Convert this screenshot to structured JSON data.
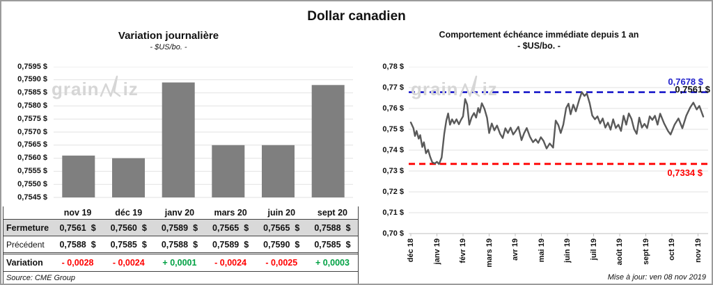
{
  "page_title": "Dollar canadien",
  "watermark": {
    "name": "GrainWiz",
    "prefix": "grain",
    "suffix": "iz"
  },
  "colors": {
    "bar_gray": "#7f7f7f",
    "line_gray": "#595959",
    "grid_gray": "#e2e2e2",
    "axis_gray": "#bfbfbf",
    "resistance_blue": "#2222cc",
    "support_red": "#ff0000",
    "positive_green": "#00a143",
    "negative_red": "#ff0000",
    "table_shade": "#d9d9d9",
    "frame_gray": "#9b9b9b"
  },
  "table": {
    "columns": [
      "nov 19",
      "déc 19",
      "janv 20",
      "mars 20",
      "juin 20",
      "sept 20"
    ],
    "rows": [
      {
        "id": "fermeture",
        "label": "Fermeture",
        "unit": "$",
        "values": [
          "0,7561",
          "0,7560",
          "0,7589",
          "0,7565",
          "0,7565",
          "0,7588"
        ]
      },
      {
        "id": "precedent",
        "label": "Précédent",
        "unit": "$",
        "values": [
          "0,7588",
          "0,7585",
          "0,7588",
          "0,7589",
          "0,7590",
          "0,7585"
        ]
      },
      {
        "id": "variation",
        "label": "Variation",
        "unit": "",
        "signed": true,
        "values": [
          "- 0,0028",
          "- 0,0024",
          "+ 0,0001",
          "- 0,0024",
          "- 0,0025",
          "+ 0,0003"
        ]
      }
    ]
  },
  "footer": {
    "source": "Source: CME Group",
    "updated": "Mise à jour: ven 08 nov 2019"
  },
  "chart_data": [
    {
      "id": "daily-variation",
      "type": "bar",
      "title": "Variation journalière",
      "subtitle": "- $US/bo. -",
      "categories": [
        "nov 19",
        "déc 19",
        "janv 20",
        "mars 20",
        "juin 20",
        "sept 20"
      ],
      "values": [
        0.7561,
        0.756,
        0.7589,
        0.7565,
        0.7565,
        0.7588
      ],
      "ylim": [
        0.7545,
        0.7595
      ],
      "ytick_step": 0.0005,
      "ytick_labels": [
        "0,7595 $",
        "0,7590 $",
        "0,7585 $",
        "0,7580 $",
        "0,7575 $",
        "0,7570 $",
        "0,7565 $",
        "0,7560 $",
        "0,7555 $",
        "0,7550 $",
        "0,7545 $"
      ],
      "grid": true,
      "legend": "none"
    },
    {
      "id": "front-month-1yr",
      "type": "line",
      "title": "Comportement échéance immédiate depuis 1 an",
      "subtitle": "- $US/bo. -",
      "x_labels": [
        "déc 18",
        "janv 19",
        "févr 19",
        "mars 19",
        "avr 19",
        "mai 19",
        "juin 19",
        "juil 19",
        "août 19",
        "sept 19",
        "oct 19",
        "nov 19"
      ],
      "ylim": [
        0.7,
        0.78
      ],
      "ytick_step": 0.01,
      "ytick_labels": [
        "0,78 $",
        "0,77 $",
        "0,76 $",
        "0,75 $",
        "0,74 $",
        "0,73 $",
        "0,72 $",
        "0,71 $",
        "0,70 $"
      ],
      "grid": true,
      "ref_lines": [
        {
          "role": "resistance",
          "value": 0.7678,
          "label": "0,7678 $",
          "style": "dashed"
        },
        {
          "role": "support",
          "value": 0.7334,
          "label": "0,7334 $",
          "style": "dashed"
        }
      ],
      "last_label": {
        "value": 0.7561,
        "text": "0,7561 $"
      },
      "series": [
        {
          "name": "échéance immédiate",
          "points": [
            [
              0.0,
              0.7533
            ],
            [
              0.1,
              0.7505
            ],
            [
              0.16,
              0.7468
            ],
            [
              0.22,
              0.7492
            ],
            [
              0.3,
              0.7455
            ],
            [
              0.36,
              0.7472
            ],
            [
              0.44,
              0.7415
            ],
            [
              0.5,
              0.7438
            ],
            [
              0.58,
              0.7385
            ],
            [
              0.66,
              0.7402
            ],
            [
              0.74,
              0.7368
            ],
            [
              0.82,
              0.7342
            ],
            [
              0.92,
              0.7336
            ],
            [
              1.0,
              0.7344
            ],
            [
              1.08,
              0.7333
            ],
            [
              1.18,
              0.7365
            ],
            [
              1.28,
              0.7478
            ],
            [
              1.36,
              0.7542
            ],
            [
              1.43,
              0.7576
            ],
            [
              1.5,
              0.7522
            ],
            [
              1.58,
              0.7548
            ],
            [
              1.66,
              0.7528
            ],
            [
              1.75,
              0.7548
            ],
            [
              1.84,
              0.7524
            ],
            [
              1.92,
              0.7545
            ],
            [
              2.0,
              0.7562
            ],
            [
              2.08,
              0.7645
            ],
            [
              2.16,
              0.7618
            ],
            [
              2.24,
              0.7522
            ],
            [
              2.33,
              0.7558
            ],
            [
              2.42,
              0.7578
            ],
            [
              2.5,
              0.7556
            ],
            [
              2.58,
              0.7602
            ],
            [
              2.64,
              0.758
            ],
            [
              2.72,
              0.7625
            ],
            [
              2.82,
              0.7598
            ],
            [
              2.92,
              0.7555
            ],
            [
              3.0,
              0.7482
            ],
            [
              3.1,
              0.7528
            ],
            [
              3.2,
              0.7495
            ],
            [
              3.3,
              0.7518
            ],
            [
              3.42,
              0.7478
            ],
            [
              3.52,
              0.7458
            ],
            [
              3.62,
              0.7505
            ],
            [
              3.72,
              0.7482
            ],
            [
              3.82,
              0.7508
            ],
            [
              3.92,
              0.7475
            ],
            [
              4.02,
              0.7492
            ],
            [
              4.12,
              0.7512
            ],
            [
              4.24,
              0.7448
            ],
            [
              4.34,
              0.7482
            ],
            [
              4.44,
              0.7506
            ],
            [
              4.56,
              0.7465
            ],
            [
              4.68,
              0.7438
            ],
            [
              4.78,
              0.7452
            ],
            [
              4.88,
              0.7435
            ],
            [
              4.98,
              0.7462
            ],
            [
              5.08,
              0.7445
            ],
            [
              5.2,
              0.7408
            ],
            [
              5.32,
              0.7432
            ],
            [
              5.45,
              0.7412
            ],
            [
              5.55,
              0.7542
            ],
            [
              5.65,
              0.752
            ],
            [
              5.74,
              0.7482
            ],
            [
              5.84,
              0.7522
            ],
            [
              5.95,
              0.7602
            ],
            [
              6.04,
              0.7623
            ],
            [
              6.12,
              0.7572
            ],
            [
              6.22,
              0.7618
            ],
            [
              6.32,
              0.7586
            ],
            [
              6.45,
              0.7642
            ],
            [
              6.55,
              0.7678
            ],
            [
              6.65,
              0.766
            ],
            [
              6.74,
              0.7672
            ],
            [
              6.85,
              0.7625
            ],
            [
              6.95,
              0.7566
            ],
            [
              7.05,
              0.7548
            ],
            [
              7.15,
              0.7562
            ],
            [
              7.25,
              0.7528
            ],
            [
              7.35,
              0.7552
            ],
            [
              7.45,
              0.7508
            ],
            [
              7.55,
              0.7532
            ],
            [
              7.65,
              0.7498
            ],
            [
              7.75,
              0.7548
            ],
            [
              7.85,
              0.7506
            ],
            [
              7.95,
              0.7522
            ],
            [
              8.05,
              0.7492
            ],
            [
              8.15,
              0.7565
            ],
            [
              8.25,
              0.7522
            ],
            [
              8.35,
              0.7576
            ],
            [
              8.45,
              0.755
            ],
            [
              8.55,
              0.7502
            ],
            [
              8.65,
              0.7478
            ],
            [
              8.75,
              0.7556
            ],
            [
              8.85,
              0.7508
            ],
            [
              8.95,
              0.7526
            ],
            [
              9.05,
              0.7506
            ],
            [
              9.15,
              0.7562
            ],
            [
              9.25,
              0.7545
            ],
            [
              9.35,
              0.7565
            ],
            [
              9.45,
              0.7522
            ],
            [
              9.55,
              0.7575
            ],
            [
              9.7,
              0.7528
            ],
            [
              9.85,
              0.7492
            ],
            [
              9.95,
              0.7475
            ],
            [
              10.1,
              0.7522
            ],
            [
              10.25,
              0.7552
            ],
            [
              10.4,
              0.7505
            ],
            [
              10.55,
              0.7565
            ],
            [
              10.7,
              0.7605
            ],
            [
              10.82,
              0.7628
            ],
            [
              10.95,
              0.7595
            ],
            [
              11.05,
              0.7612
            ],
            [
              11.2,
              0.7561
            ]
          ]
        }
      ]
    }
  ]
}
